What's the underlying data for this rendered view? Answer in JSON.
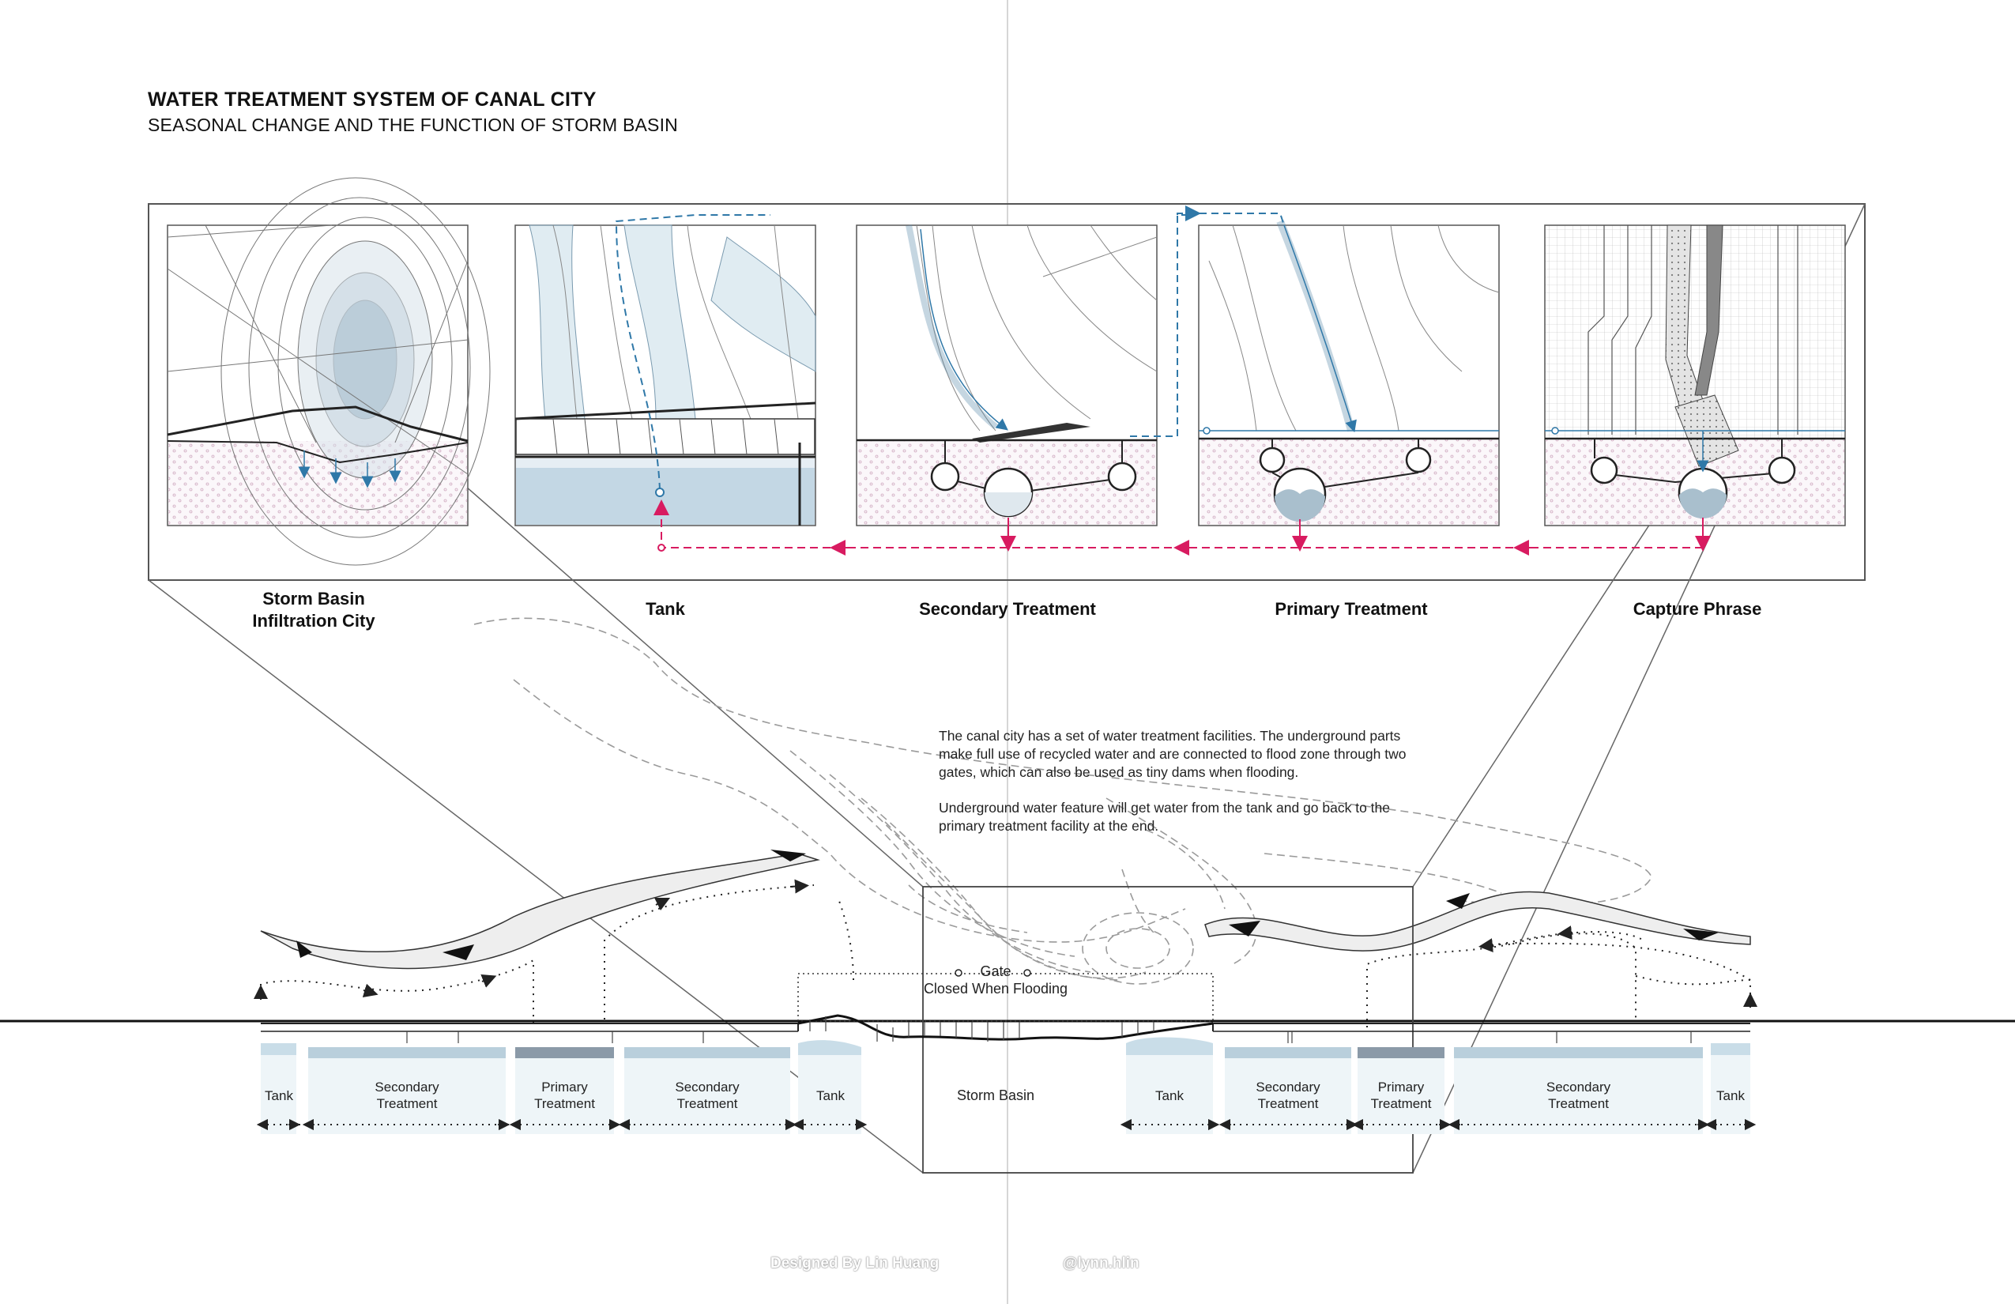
{
  "header": {
    "title": "WATER TREATMENT SYSTEM OF CANAL CITY",
    "subtitle": "SEASONAL CHANGE AND THE FUNCTION OF STORM BASIN"
  },
  "stages": [
    {
      "label_line1": "Storm Basin",
      "label_line2": "Infiltration City"
    },
    {
      "label_line1": "Tank",
      "label_line2": ""
    },
    {
      "label_line1": "Secondary Treatment",
      "label_line2": ""
    },
    {
      "label_line1": "Primary Treatment",
      "label_line2": ""
    },
    {
      "label_line1": "Capture Phrase",
      "label_line2": ""
    }
  ],
  "description": {
    "paragraph1": "The canal city has a set of water treatment facilities. The underground parts make full use of recycled water and are connected to flood zone through two gates, which can also be used as tiny dams when flooding.",
    "paragraph2": "Underground water feature will get water from the tank and go back to the primary treatment facility at the end."
  },
  "section": {
    "gate_line1": "Gate",
    "gate_line2": "Closed When Flooding",
    "storm_basin": "Storm Basin",
    "segments": [
      {
        "line1": "Tank",
        "line2": ""
      },
      {
        "line1": "Secondary",
        "line2": "Treatment"
      },
      {
        "line1": "Primary",
        "line2": "Treatment"
      },
      {
        "line1": "Secondary",
        "line2": "Treatment"
      },
      {
        "line1": "Tank",
        "line2": ""
      },
      {
        "line1": "Tank",
        "line2": ""
      },
      {
        "line1": "Secondary",
        "line2": "Treatment"
      },
      {
        "line1": "Primary",
        "line2": "Treatment"
      },
      {
        "line1": "Secondary",
        "line2": "Treatment"
      },
      {
        "line1": "Tank",
        "line2": ""
      }
    ]
  },
  "credits": {
    "designer": "Designed By Lin Huang",
    "handle": "@lynn.hlin"
  },
  "colors": {
    "water": "#c9dde8",
    "flow_blue": "#2f78a8",
    "return_pink": "#d81b60",
    "hatch": "#c9a5b8",
    "dark_band": "#8b9aa8"
  }
}
